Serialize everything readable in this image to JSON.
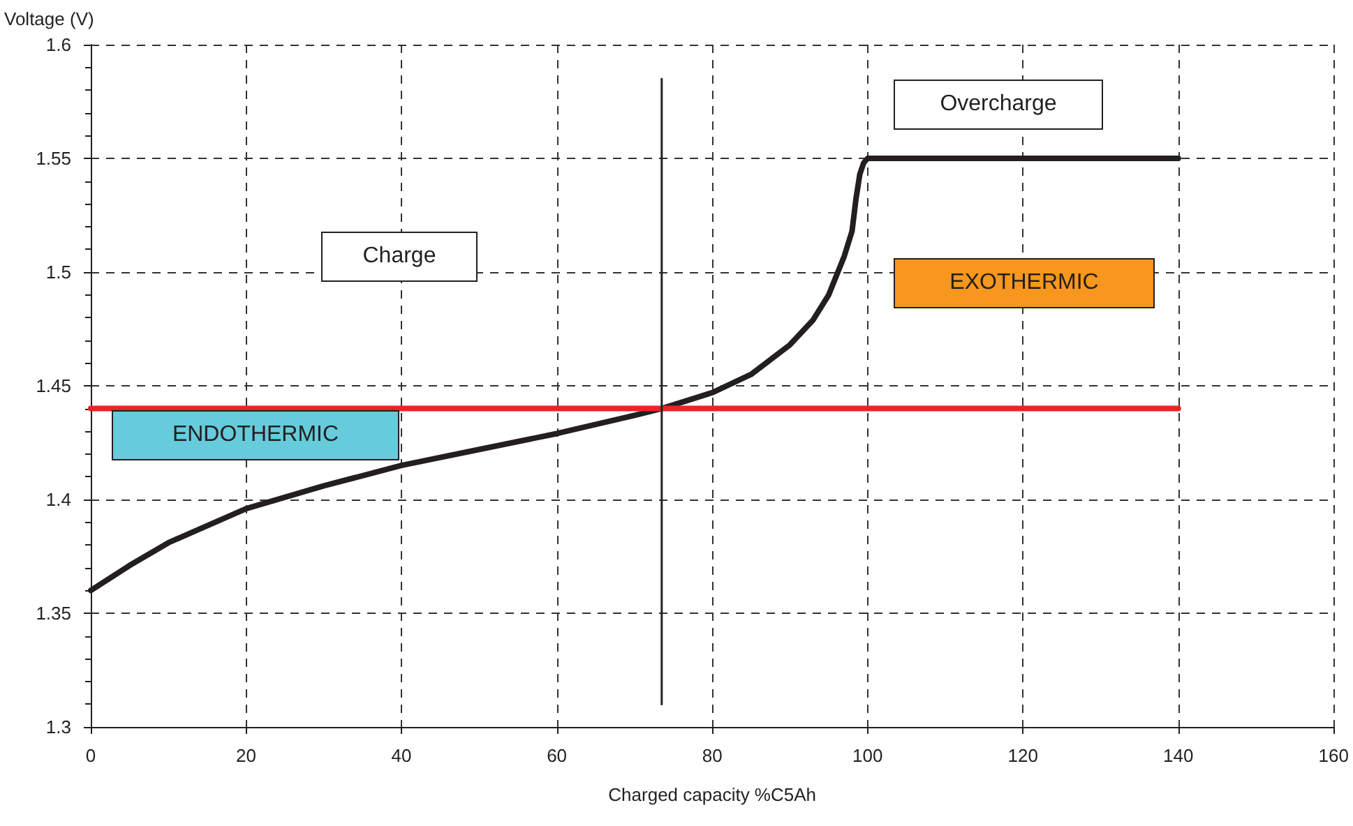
{
  "chart_data": {
    "type": "line",
    "xlabel": "Charged capacity %C5Ah",
    "ylabel": "Voltage (V)",
    "xlim": [
      0,
      160
    ],
    "xticks": [
      0,
      20,
      40,
      60,
      80,
      100,
      120,
      140,
      160
    ],
    "ylim": [
      1.3,
      1.6
    ],
    "yticks": [
      1.3,
      1.35,
      1.4,
      1.45,
      1.5,
      1.55,
      1.6
    ],
    "grid": true,
    "marker": "none",
    "line_style": "solid",
    "series": [
      {
        "color": "#231f20",
        "x": [
          0,
          5,
          10,
          20,
          30,
          40,
          50,
          60,
          70,
          73.5,
          80,
          85,
          90,
          93,
          95,
          97,
          98,
          98.5,
          99,
          99.5,
          100,
          110,
          120,
          130,
          140
        ],
        "values": [
          1.36,
          1.371,
          1.381,
          1.396,
          1.406,
          1.415,
          1.422,
          1.429,
          1.437,
          1.44,
          1.447,
          1.455,
          1.468,
          1.479,
          1.49,
          1.507,
          1.518,
          1.532,
          1.543,
          1.548,
          1.55,
          1.55,
          1.55,
          1.55,
          1.55
        ]
      },
      {
        "color": "#ee2225",
        "x": [
          0,
          140
        ],
        "values": [
          1.44,
          1.44
        ]
      },
      {
        "color": "#231f20",
        "x": [
          73.5,
          73.5
        ],
        "values": [
          1.31,
          1.585
        ]
      }
    ],
    "annotations": [
      "Overcharge",
      "Charge",
      "EXOTHERMIC",
      "ENDOTHERMIC"
    ]
  }
}
